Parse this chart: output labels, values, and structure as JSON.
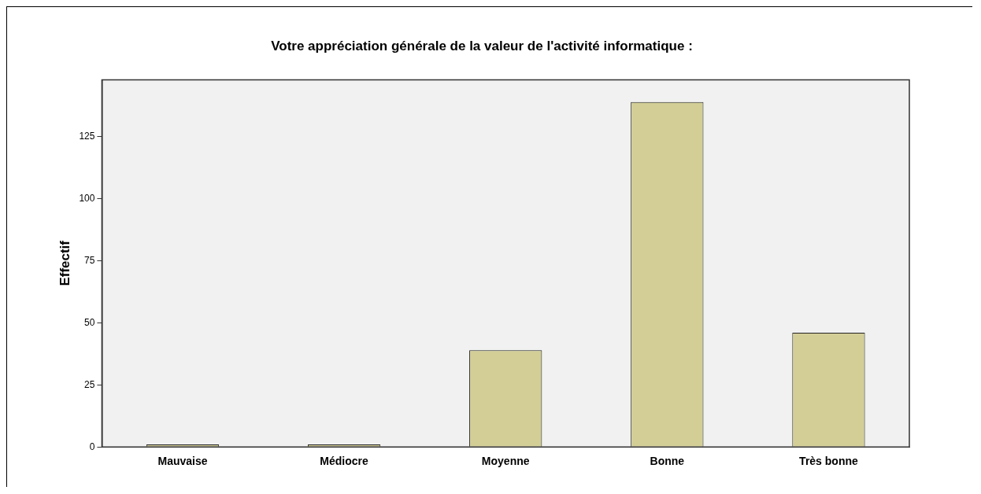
{
  "chart_data": {
    "type": "bar",
    "title": "Votre appréciation générale de la valeur de l'activité informatique :",
    "ylabel": "Effectif",
    "categories": [
      "Mauvaise",
      "Médiocre",
      "Moyenne",
      "Bonne",
      "Très bonne"
    ],
    "values": [
      1,
      1,
      39,
      139,
      46
    ],
    "color": "#d3ce96",
    "ylim": [
      0,
      148
    ],
    "yticks": [
      0,
      25,
      50,
      75,
      100,
      125
    ],
    "grid": false,
    "legend": false
  }
}
